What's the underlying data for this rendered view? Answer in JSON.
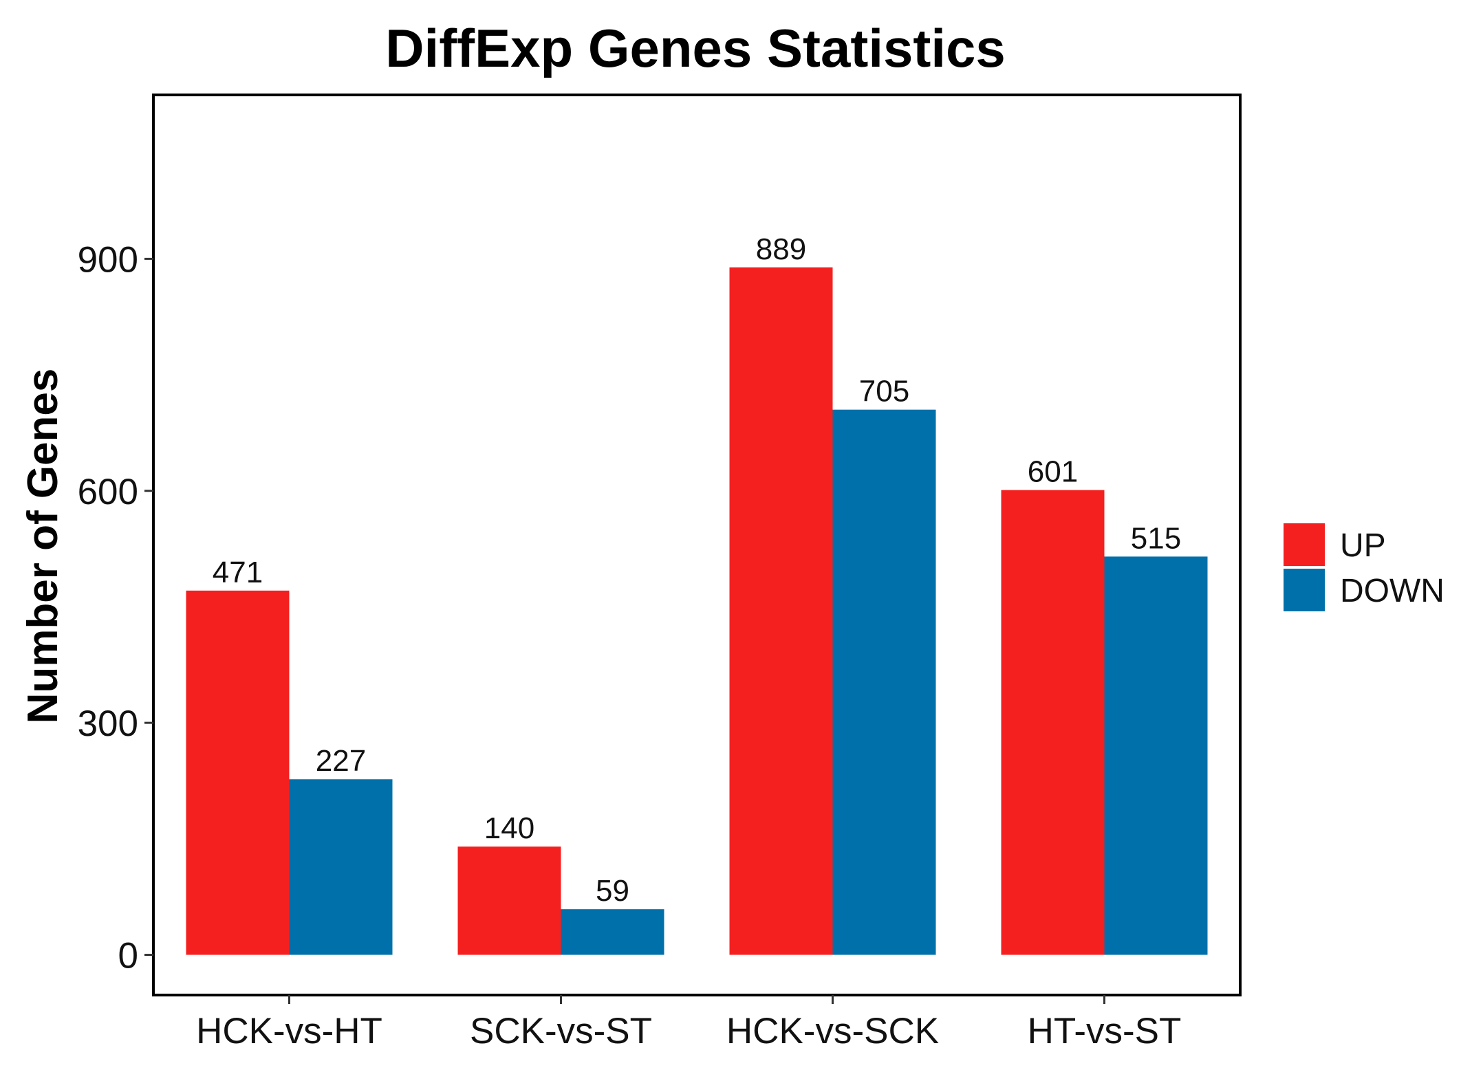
{
  "chart_data": {
    "type": "bar",
    "title": "DiffExp Genes Statistics",
    "xlabel": "",
    "ylabel": "Number of Genes",
    "categories": [
      "HCK-vs-HT",
      "SCK-vs-ST",
      "HCK-vs-SCK",
      "HT-vs-ST"
    ],
    "series": [
      {
        "name": "UP",
        "color": "#f4201f",
        "values": [
          471,
          140,
          889,
          601
        ]
      },
      {
        "name": "DOWN",
        "color": "#0070aa",
        "values": [
          227,
          59,
          705,
          515
        ]
      }
    ],
    "value_labels": [
      [
        "471",
        "140",
        "889",
        "601"
      ],
      [
        "227",
        "59",
        "705",
        "515"
      ]
    ],
    "ylim": [
      -52,
      1112
    ],
    "yticks": [
      0,
      300,
      600,
      900
    ],
    "ytick_labels": [
      "0",
      "300",
      "600",
      "900"
    ],
    "grid": false,
    "legend": {
      "position": "right",
      "entries": [
        "UP",
        "DOWN"
      ]
    }
  }
}
